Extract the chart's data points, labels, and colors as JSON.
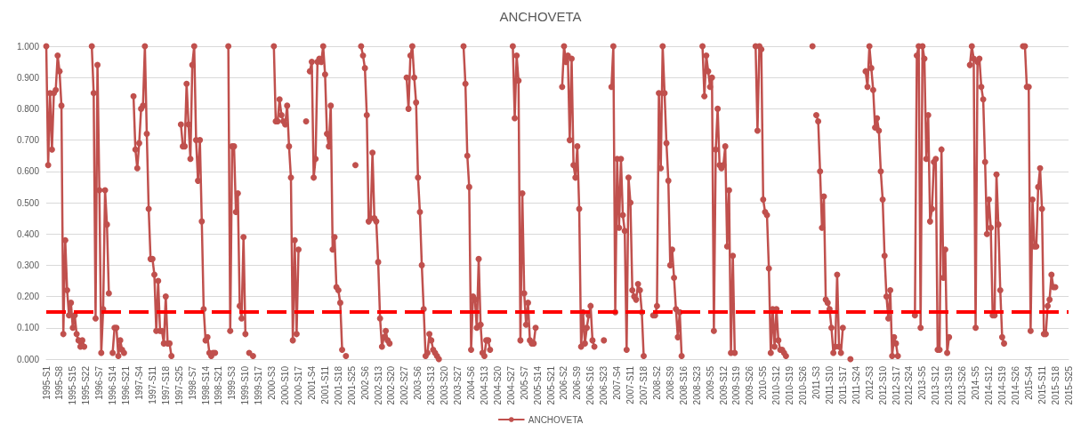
{
  "chart_data": {
    "type": "line",
    "title": "ANCHOVETA",
    "categories": [
      "1995-S1",
      null,
      null,
      null,
      null,
      null,
      null,
      "1995-S8",
      null,
      null,
      null,
      null,
      null,
      null,
      "1995-S15",
      null,
      null,
      null,
      null,
      null,
      null,
      "1995-S22",
      null,
      null,
      null,
      null,
      null,
      null,
      "1996-S7",
      null,
      null,
      null,
      null,
      null,
      null,
      "1996-S14",
      null,
      null,
      null,
      null,
      null,
      null,
      "1996-S21",
      null,
      null,
      null,
      null,
      null,
      null,
      "1997-S4",
      null,
      null,
      null,
      null,
      null,
      null,
      "1997-S11",
      null,
      null,
      null,
      null,
      null,
      null,
      "1997-S18",
      null,
      null,
      null,
      null,
      null,
      null,
      "1997-S25",
      null,
      null,
      null,
      null,
      null,
      null,
      "1998-S7",
      null,
      null,
      null,
      null,
      null,
      null,
      "1998-S14",
      null,
      null,
      null,
      null,
      null,
      null,
      "1998-S21",
      null,
      null,
      null,
      null,
      null,
      null,
      "1999-S3",
      null,
      null,
      null,
      null,
      null,
      null,
      "1999-S10",
      null,
      null,
      null,
      null,
      null,
      null,
      "1999-S17",
      null,
      null,
      null,
      null,
      null,
      null,
      "2000-S3",
      null,
      null,
      null,
      null,
      null,
      null,
      "2000-S10",
      null,
      null,
      null,
      null,
      null,
      null,
      "2000-S17",
      null,
      null,
      null,
      null,
      null,
      null,
      "2001-S4",
      null,
      null,
      null,
      null,
      null,
      null,
      "2001-S11",
      null,
      null,
      null,
      null,
      null,
      null,
      "2001-S18",
      null,
      null,
      null,
      null,
      null,
      null,
      "2001-S25",
      null,
      null,
      null,
      null,
      null,
      null,
      "2002-S6",
      null,
      null,
      null,
      null,
      null,
      null,
      "2002-S13",
      null,
      null,
      null,
      null,
      null,
      null,
      "2002-S20",
      null,
      null,
      null,
      null,
      null,
      null,
      "2002-S27",
      null,
      null,
      null,
      null,
      null,
      null,
      "2003-S6",
      null,
      null,
      null,
      null,
      null,
      null,
      "2003-S13",
      null,
      null,
      null,
      null,
      null,
      null,
      "2003-S20",
      null,
      null,
      null,
      null,
      null,
      null,
      "2003-S27",
      null,
      null,
      null,
      null,
      null,
      null,
      "2004-S6",
      null,
      null,
      null,
      null,
      null,
      null,
      "2004-S13",
      null,
      null,
      null,
      null,
      null,
      null,
      "2004-S20",
      null,
      null,
      null,
      null,
      null,
      null,
      "2004-S27",
      null,
      null,
      null,
      null,
      null,
      null,
      "2005-S7",
      null,
      null,
      null,
      null,
      null,
      null,
      "2005-S14",
      null,
      null,
      null,
      null,
      null,
      null,
      "2005-S21",
      null,
      null,
      null,
      null,
      null,
      null,
      "2006-S2",
      null,
      null,
      null,
      null,
      null,
      null,
      "2006-S9",
      null,
      null,
      null,
      null,
      null,
      null,
      "2006-S16",
      null,
      null,
      null,
      null,
      null,
      null,
      "2006-S23",
      null,
      null,
      null,
      null,
      null,
      null,
      "2007-S4",
      null,
      null,
      null,
      null,
      null,
      null,
      "2007-S11",
      null,
      null,
      null,
      null,
      null,
      null,
      "2007-S18",
      null,
      null,
      null,
      null,
      null,
      null,
      "2008-S2",
      null,
      null,
      null,
      null,
      null,
      null,
      "2008-S9",
      null,
      null,
      null,
      null,
      null,
      null,
      "2008-S16",
      null,
      null,
      null,
      null,
      null,
      null,
      "2008-S23",
      null,
      null,
      null,
      null,
      null,
      null,
      "2009-S5",
      null,
      null,
      null,
      null,
      null,
      null,
      "2009-S12",
      null,
      null,
      null,
      null,
      null,
      null,
      "2009-S19",
      null,
      null,
      null,
      null,
      null,
      null,
      "2009-S26",
      null,
      null,
      null,
      null,
      null,
      null,
      "2010-S5",
      null,
      null,
      null,
      null,
      null,
      null,
      "2010-S12",
      null,
      null,
      null,
      null,
      null,
      null,
      "2010-S19",
      null,
      null,
      null,
      null,
      null,
      null,
      "2010-S26",
      null,
      null,
      null,
      null,
      null,
      null,
      "2011-S3",
      null,
      null,
      null,
      null,
      null,
      null,
      "2011-S10",
      null,
      null,
      null,
      null,
      null,
      null,
      "2011-S17",
      null,
      null,
      null,
      null,
      null,
      null,
      "2011-S24",
      null,
      null,
      null,
      null,
      null,
      null,
      "2012-S3",
      null,
      null,
      null,
      null,
      null,
      null,
      "2012-S10",
      null,
      null,
      null,
      null,
      null,
      null,
      "2012-S17",
      null,
      null,
      null,
      null,
      null,
      null,
      "2012-S24",
      null,
      null,
      null,
      null,
      null,
      null,
      "2013-S5",
      null,
      null,
      null,
      null,
      null,
      null,
      "2013-S12",
      null,
      null,
      null,
      null,
      null,
      null,
      "2013-S19",
      null,
      null,
      null,
      null,
      null,
      null,
      "2013-S26",
      null,
      null,
      null,
      null,
      null,
      null,
      "2014-S5",
      null,
      null,
      null,
      null,
      null,
      null,
      "2014-S12",
      null,
      null,
      null,
      null,
      null,
      null,
      "2014-S19",
      null,
      null,
      null,
      null,
      null,
      null,
      "2014-S26",
      null,
      null,
      null,
      null,
      null,
      null,
      "2015-S4",
      null,
      null,
      null,
      null,
      null,
      null,
      "2015-S11",
      null,
      null,
      null,
      null,
      null,
      null,
      "2015-S18",
      null,
      null,
      null,
      null,
      null,
      null,
      "2015-S25"
    ],
    "series": [
      {
        "name": "ANCHOVETA",
        "color": "#c0504d",
        "values": [
          1,
          0.62,
          0.85,
          0.67,
          0.85,
          0.86,
          0.97,
          0.92,
          0.81,
          0.08,
          0.38,
          0.22,
          0.14,
          0.18,
          0.1,
          0.14,
          0.08,
          0.06,
          0.04,
          0.06,
          0.04,
          null,
          null,
          null,
          1,
          0.85,
          0.13,
          0.94,
          0.54,
          0.02,
          0.16,
          0.54,
          0.43,
          0.21,
          null,
          0.02,
          0.1,
          0.1,
          0.01,
          0.06,
          0.03,
          0.02,
          null,
          null,
          null,
          null,
          0.84,
          0.67,
          0.61,
          0.69,
          0.8,
          0.81,
          1,
          0.72,
          0.48,
          0.32,
          0.32,
          0.27,
          0.09,
          0.25,
          0.09,
          0.09,
          0.05,
          0.2,
          0.05,
          0.05,
          0.01,
          null,
          null,
          null,
          null,
          0.75,
          0.68,
          0.68,
          0.88,
          0.75,
          0.64,
          0.94,
          1,
          0.7,
          0.57,
          0.7,
          0.44,
          0.16,
          0.06,
          0.07,
          0.02,
          0.01,
          0.02,
          0.02,
          null,
          null,
          null,
          null,
          null,
          null,
          1,
          0.09,
          0.68,
          0.68,
          0.47,
          0.53,
          0.17,
          0.13,
          0.39,
          0.08,
          null,
          0.02,
          null,
          0.01,
          null,
          null,
          null,
          null,
          null,
          null,
          null,
          null,
          null,
          null,
          1,
          0.76,
          0.76,
          0.83,
          0.78,
          0.76,
          0.75,
          0.81,
          0.68,
          0.58,
          0.06,
          0.38,
          0.08,
          0.35,
          null,
          null,
          null,
          0.76,
          null,
          0.92,
          0.95,
          0.58,
          0.64,
          0.95,
          0.96,
          0.95,
          1,
          0.91,
          0.72,
          0.68,
          0.81,
          0.35,
          0.39,
          0.23,
          0.22,
          0.18,
          0.03,
          null,
          0.01,
          null,
          null,
          null,
          null,
          0.62,
          null,
          null,
          1,
          0.97,
          0.93,
          0.78,
          0.44,
          0.45,
          0.66,
          0.45,
          0.44,
          0.31,
          0.13,
          0.04,
          0.07,
          0.09,
          0.06,
          0.05,
          null,
          null,
          null,
          null,
          null,
          null,
          null,
          null,
          0.9,
          0.8,
          0.97,
          1,
          0.9,
          0.82,
          0.58,
          0.47,
          0.3,
          0.16,
          0.01,
          0.02,
          0.08,
          0.06,
          0.03,
          0.02,
          0.01,
          0,
          null,
          null,
          null,
          null,
          null,
          null,
          null,
          null,
          null,
          null,
          null,
          null,
          1,
          0.88,
          0.65,
          0.55,
          0.03,
          0.2,
          0.19,
          0.1,
          0.32,
          0.11,
          0.02,
          0.01,
          0.06,
          0.06,
          0.03,
          null,
          null,
          null,
          null,
          null,
          null,
          null,
          null,
          null,
          null,
          null,
          1,
          0.77,
          0.97,
          0.89,
          0.06,
          0.53,
          0.21,
          0.11,
          0.18,
          0.06,
          0.05,
          0.05,
          0.1,
          null,
          null,
          null,
          null,
          null,
          null,
          null,
          null,
          null,
          null,
          null,
          null,
          null,
          0.87,
          1,
          0.95,
          0.97,
          0.7,
          0.96,
          0.62,
          0.58,
          0.68,
          0.48,
          0.04,
          0.15,
          0.05,
          0.1,
          0.14,
          0.17,
          0.06,
          0.04,
          null,
          null,
          null,
          null,
          0.06,
          null,
          null,
          null,
          0.87,
          1,
          0.15,
          0.64,
          0.42,
          0.64,
          0.46,
          0.41,
          0.03,
          0.58,
          0.5,
          0.22,
          0.2,
          0.19,
          0.24,
          0.22,
          0.15,
          0.01,
          null,
          null,
          null,
          null,
          0.14,
          0.14,
          0.17,
          0.85,
          0.61,
          1,
          0.85,
          0.69,
          0.57,
          0.3,
          0.35,
          0.26,
          0.16,
          0.07,
          0.15,
          0.01,
          null,
          null,
          null,
          null,
          null,
          null,
          null,
          null,
          null,
          null,
          1,
          0.84,
          0.97,
          0.92,
          0.87,
          0.9,
          0.09,
          0.67,
          0.8,
          0.62,
          0.61,
          0.62,
          0.68,
          0.36,
          0.54,
          0.02,
          0.33,
          0.02,
          null,
          null,
          null,
          null,
          null,
          null,
          null,
          null,
          null,
          null,
          1,
          0.73,
          1,
          0.99,
          0.51,
          0.47,
          0.46,
          0.29,
          0.02,
          0.16,
          0.04,
          0.16,
          0.06,
          0.03,
          0.03,
          0.02,
          0.01,
          null,
          null,
          null,
          null,
          null,
          null,
          null,
          null,
          null,
          null,
          null,
          null,
          null,
          1,
          null,
          0.78,
          0.76,
          0.6,
          0.42,
          0.52,
          0.19,
          0.18,
          0.16,
          0.1,
          0.02,
          0.04,
          0.27,
          0.04,
          0.02,
          0.1,
          null,
          null,
          null,
          0,
          null,
          null,
          null,
          null,
          null,
          null,
          null,
          0.92,
          0.87,
          1,
          0.93,
          0.86,
          0.74,
          0.77,
          0.73,
          0.6,
          0.51,
          0.33,
          0.2,
          0.13,
          0.22,
          0.01,
          0.07,
          0.05,
          0.01,
          null,
          null,
          null,
          null,
          null,
          null,
          null,
          null,
          0.14,
          0.97,
          1,
          0.1,
          1,
          0.96,
          0.64,
          0.78,
          0.44,
          0.48,
          0.63,
          0.64,
          0.03,
          0.03,
          0.67,
          0.26,
          0.35,
          0.02,
          0.07,
          null,
          null,
          null,
          null,
          null,
          null,
          null,
          null,
          null,
          null,
          0.94,
          1,
          0.96,
          0.1,
          0.95,
          0.96,
          0.87,
          0.83,
          0.63,
          0.4,
          0.51,
          0.42,
          0.14,
          0.14,
          0.59,
          0.43,
          0.22,
          0.07,
          0.05,
          null,
          null,
          null,
          null,
          null,
          null,
          null,
          null,
          null,
          1,
          1,
          0.87,
          0.87,
          0.09,
          0.51,
          0.36,
          0.36,
          0.55,
          0.61,
          0.48,
          0.08,
          0.08,
          0.17,
          0.19,
          0.27,
          0.23,
          0.23,
          null,
          null,
          null,
          null,
          null,
          null,
          null
        ]
      }
    ],
    "ylim": [
      0,
      1
    ],
    "yticks": [
      {
        "value": 0,
        "label": "0.000"
      },
      {
        "value": 0.1,
        "label": "0.100"
      },
      {
        "value": 0.2,
        "label": "0.200"
      },
      {
        "value": 0.3,
        "label": "0.300"
      },
      {
        "value": 0.4,
        "label": "0.400"
      },
      {
        "value": 0.5,
        "label": "0.500"
      },
      {
        "value": 0.6,
        "label": "0.600"
      },
      {
        "value": 0.7,
        "label": "0.700"
      },
      {
        "value": 0.8,
        "label": "0.800"
      },
      {
        "value": 0.9,
        "label": "0.900"
      },
      {
        "value": 1,
        "label": "1.000"
      }
    ],
    "ref_lines": [
      {
        "axis": "y",
        "value": 0.15,
        "color": "#ff0000",
        "line_style": "dashed"
      }
    ],
    "grid": "y",
    "legend": "bottom",
    "marker": "circle",
    "line_style": "solid"
  }
}
